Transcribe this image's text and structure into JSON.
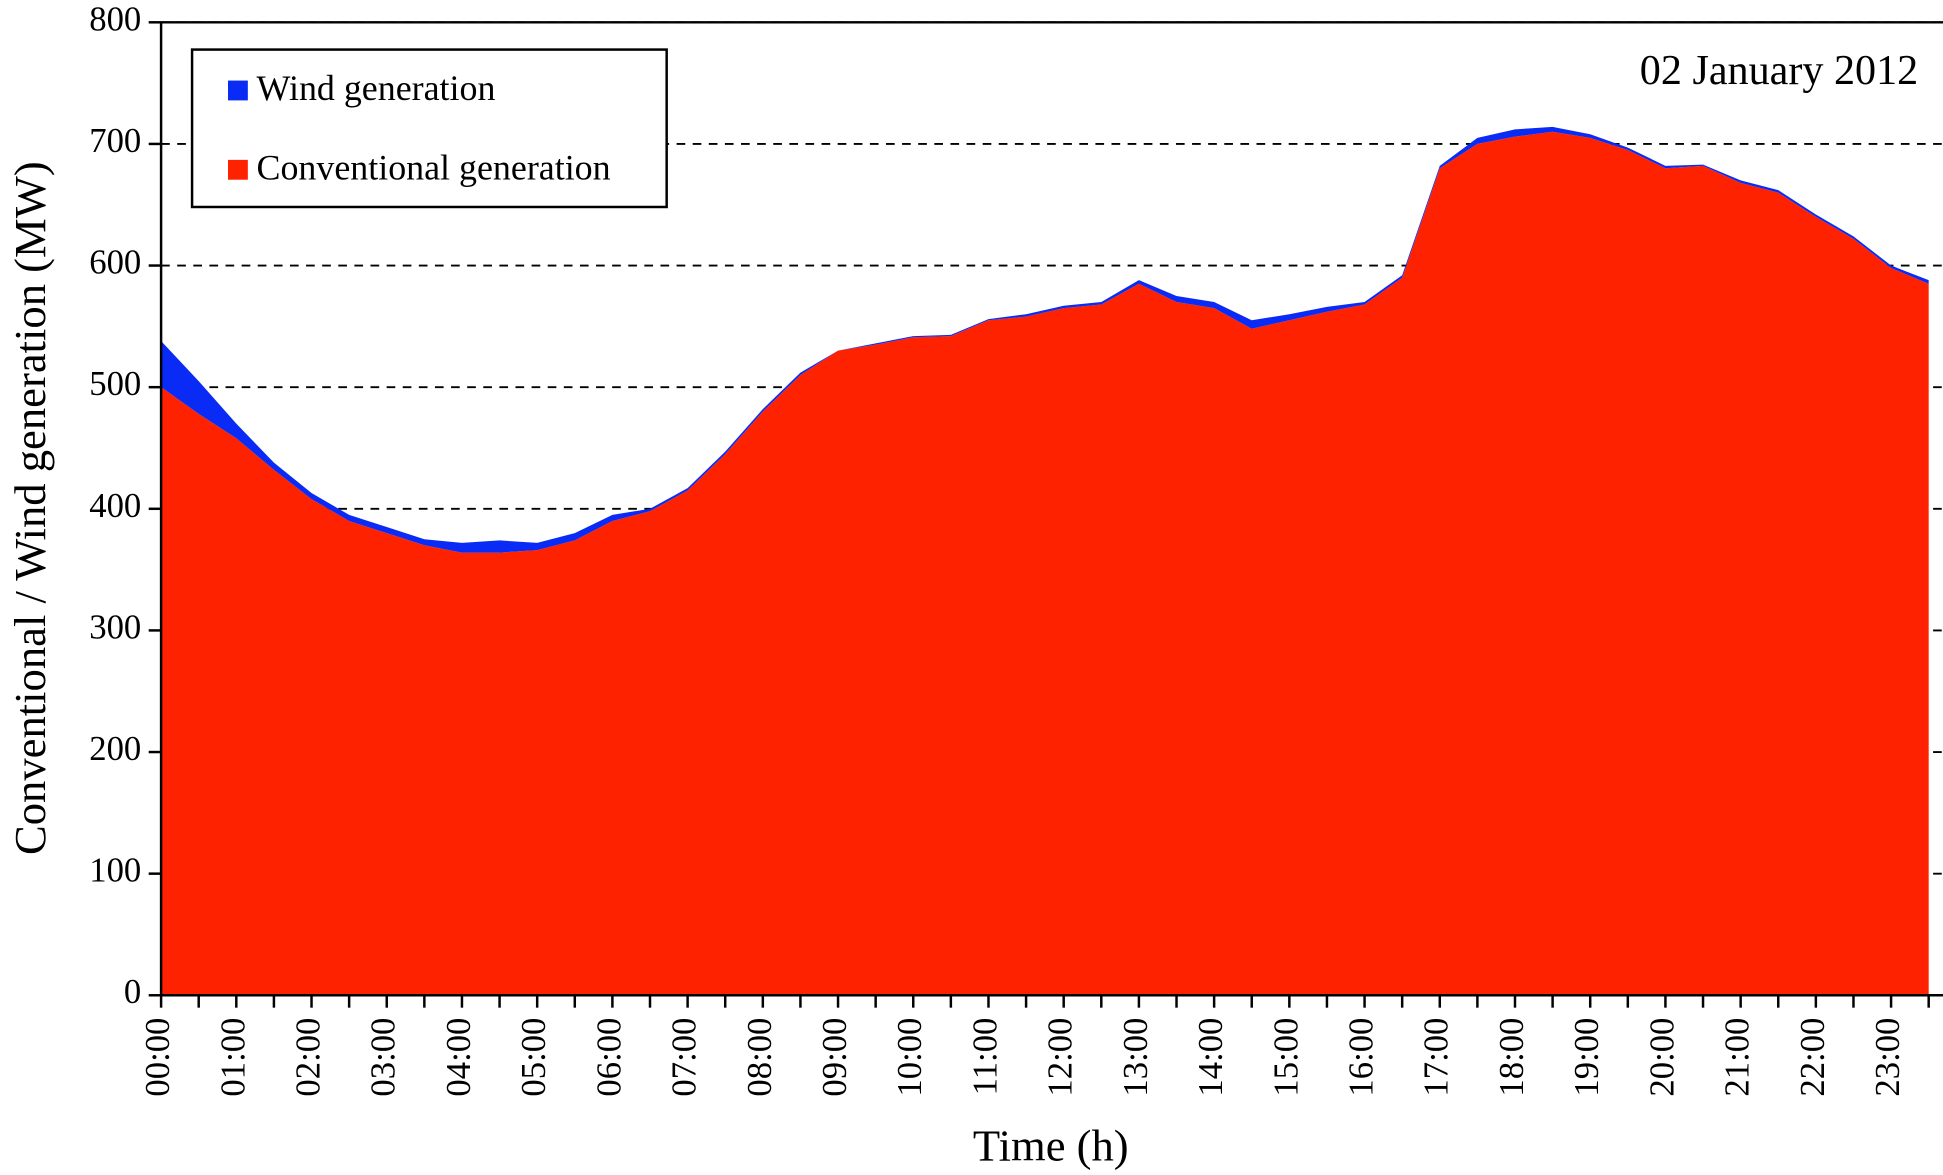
{
  "chart_data": {
    "type": "stacked-area",
    "x_label": "Time (h)",
    "y_label": "Conventional / Wind generation (MW)",
    "annotation": "02 January 2012",
    "categories": [
      "00:00",
      null,
      "01:00",
      null,
      "02:00",
      null,
      "03:00",
      null,
      "04:00",
      null,
      "05:00",
      null,
      "06:00",
      null,
      "07:00",
      null,
      "08:00",
      null,
      "09:00",
      null,
      "10:00",
      null,
      "11:00",
      null,
      "12:00",
      null,
      "13:00",
      null,
      "14:00",
      null,
      "15:00",
      null,
      "16:00",
      null,
      "17:00",
      null,
      "18:00",
      null,
      "19:00",
      null,
      "20:00",
      null,
      "21:00",
      null,
      "22:00",
      null,
      "23:00",
      null
    ],
    "series": [
      {
        "name": "Wind generation",
        "color": "#0a2bf5",
        "values": [
          38,
          27,
          12,
          6,
          5,
          5,
          5,
          5,
          8,
          10,
          6,
          6,
          5,
          2,
          2,
          2,
          2,
          2,
          0,
          1,
          1,
          1,
          1,
          2,
          2,
          2,
          3,
          5,
          5,
          7,
          5,
          4,
          2,
          2,
          2,
          5,
          6,
          4,
          3,
          2,
          2,
          1,
          2,
          2,
          2,
          2,
          2,
          3
        ]
      },
      {
        "name": "Conventional generation",
        "color": "#ff2200",
        "values": [
          500,
          478,
          458,
          432,
          408,
          390,
          380,
          370,
          364,
          364,
          366,
          374,
          390,
          398,
          415,
          445,
          480,
          510,
          530,
          535,
          541,
          542,
          555,
          558,
          565,
          568,
          585,
          570,
          565,
          548,
          555,
          562,
          568,
          590,
          680,
          700,
          706,
          710,
          705,
          695,
          680,
          682,
          668,
          660,
          640,
          622,
          598,
          585
        ]
      }
    ],
    "ylim": [
      0,
      800
    ],
    "yticks": [
      0,
      100,
      200,
      300,
      400,
      500,
      600,
      700,
      800
    ],
    "grid": true,
    "legend": "top-left"
  }
}
